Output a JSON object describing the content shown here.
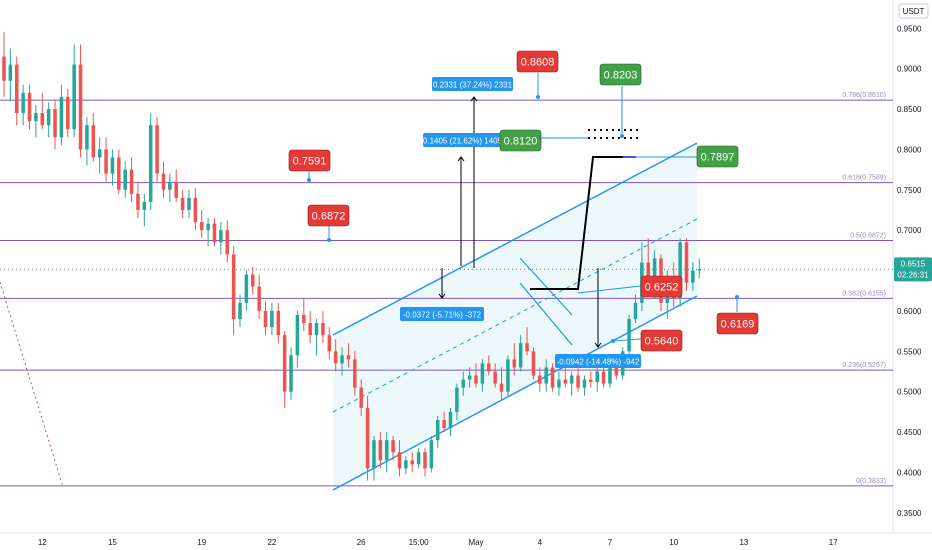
{
  "chart_data": {
    "type": "candlestick",
    "quote_currency": "USDT",
    "ylim": [
      0.325,
      0.985
    ],
    "x_index_range": [
      0,
      140
    ],
    "price_axis": {
      "ticks": [
        "0.9500",
        "0.9000",
        "0.8500",
        "0.8000",
        "0.7500",
        "0.7000",
        "0.6500",
        "0.6000",
        "0.5500",
        "0.5000",
        "0.4500",
        "0.4000",
        "0.3500"
      ],
      "current_price": "0.6515",
      "countdown": "02:26:31",
      "current_color": "#26a69a"
    },
    "time_axis": {
      "ticks": [
        {
          "label": "12",
          "i": 6
        },
        {
          "label": "15",
          "i": 17
        },
        {
          "label": "19",
          "i": 31
        },
        {
          "label": "22",
          "i": 42
        },
        {
          "label": "26",
          "i": 56
        },
        {
          "label": "15:00",
          "i": 65
        },
        {
          "label": "May",
          "i": 74
        },
        {
          "label": "4",
          "i": 84
        },
        {
          "label": "7",
          "i": 95
        },
        {
          "label": "10",
          "i": 105
        },
        {
          "label": "13",
          "i": 116
        },
        {
          "label": "17",
          "i": 130
        }
      ]
    },
    "fib_levels": [
      {
        "price": 0.861,
        "label": "0.786(0.8610)"
      },
      {
        "price": 0.7589,
        "label": "0.618(0.7589)"
      },
      {
        "price": 0.6872,
        "label": "0.5(0.6872)"
      },
      {
        "price": 0.6155,
        "label": "0.382(0.6155)"
      },
      {
        "price": 0.5267,
        "label": "0.236(0.5267)"
      },
      {
        "price": 0.3833,
        "label": "0(0.3833)"
      }
    ],
    "price_labels": [
      {
        "text": "0.8608",
        "price": 0.8608,
        "color": "#e53935"
      },
      {
        "text": "0.8203",
        "price": 0.8203,
        "color": "#43a047"
      },
      {
        "text": "0.8120",
        "price": 0.812,
        "color": "#43a047"
      },
      {
        "text": "0.7897",
        "price": 0.7897,
        "color": "#43a047"
      },
      {
        "text": "0.7591",
        "price": 0.7591,
        "color": "#e53935"
      },
      {
        "text": "0.6872",
        "price": 0.6872,
        "color": "#e53935"
      },
      {
        "text": "0.6252",
        "price": 0.6252,
        "color": "#e53935"
      },
      {
        "text": "0.6169",
        "price": 0.6169,
        "color": "#e53935"
      },
      {
        "text": "0.5640",
        "price": 0.564,
        "color": "#e53935"
      }
    ],
    "measurements": [
      {
        "text": "0.2331 (37.24%) 2331"
      },
      {
        "text": "0.1405 (21.62%) 1405"
      },
      {
        "text": "-0.0372 (-5.71%) -372"
      },
      {
        "text": "-0.0942 (-14.48%) -942"
      }
    ],
    "candles": [
      {
        "i": 0,
        "o": 0.915,
        "h": 0.945,
        "l": 0.865,
        "c": 0.885
      },
      {
        "i": 1,
        "o": 0.885,
        "h": 0.925,
        "l": 0.86,
        "c": 0.905
      },
      {
        "i": 2,
        "o": 0.905,
        "h": 0.915,
        "l": 0.83,
        "c": 0.845
      },
      {
        "i": 3,
        "o": 0.845,
        "h": 0.88,
        "l": 0.83,
        "c": 0.87
      },
      {
        "i": 4,
        "o": 0.87,
        "h": 0.88,
        "l": 0.825,
        "c": 0.835
      },
      {
        "i": 5,
        "o": 0.835,
        "h": 0.855,
        "l": 0.815,
        "c": 0.845
      },
      {
        "i": 6,
        "o": 0.845,
        "h": 0.87,
        "l": 0.825,
        "c": 0.83
      },
      {
        "i": 7,
        "o": 0.83,
        "h": 0.858,
        "l": 0.815,
        "c": 0.85
      },
      {
        "i": 8,
        "o": 0.85,
        "h": 0.862,
        "l": 0.8,
        "c": 0.815
      },
      {
        "i": 9,
        "o": 0.815,
        "h": 0.88,
        "l": 0.805,
        "c": 0.865
      },
      {
        "i": 10,
        "o": 0.865,
        "h": 0.875,
        "l": 0.815,
        "c": 0.825
      },
      {
        "i": 11,
        "o": 0.825,
        "h": 0.93,
        "l": 0.815,
        "c": 0.905
      },
      {
        "i": 12,
        "o": 0.905,
        "h": 0.93,
        "l": 0.79,
        "c": 0.8
      },
      {
        "i": 13,
        "o": 0.8,
        "h": 0.84,
        "l": 0.78,
        "c": 0.83
      },
      {
        "i": 14,
        "o": 0.83,
        "h": 0.845,
        "l": 0.785,
        "c": 0.79
      },
      {
        "i": 15,
        "o": 0.79,
        "h": 0.815,
        "l": 0.77,
        "c": 0.8
      },
      {
        "i": 16,
        "o": 0.8,
        "h": 0.815,
        "l": 0.76,
        "c": 0.77
      },
      {
        "i": 17,
        "o": 0.77,
        "h": 0.8,
        "l": 0.755,
        "c": 0.79
      },
      {
        "i": 18,
        "o": 0.79,
        "h": 0.8,
        "l": 0.745,
        "c": 0.75
      },
      {
        "i": 19,
        "o": 0.75,
        "h": 0.785,
        "l": 0.74,
        "c": 0.775
      },
      {
        "i": 20,
        "o": 0.775,
        "h": 0.79,
        "l": 0.735,
        "c": 0.745
      },
      {
        "i": 21,
        "o": 0.745,
        "h": 0.76,
        "l": 0.715,
        "c": 0.725
      },
      {
        "i": 22,
        "o": 0.725,
        "h": 0.745,
        "l": 0.705,
        "c": 0.735
      },
      {
        "i": 23,
        "o": 0.735,
        "h": 0.845,
        "l": 0.725,
        "c": 0.83
      },
      {
        "i": 24,
        "o": 0.83,
        "h": 0.84,
        "l": 0.76,
        "c": 0.77
      },
      {
        "i": 25,
        "o": 0.77,
        "h": 0.785,
        "l": 0.74,
        "c": 0.75
      },
      {
        "i": 26,
        "o": 0.75,
        "h": 0.77,
        "l": 0.735,
        "c": 0.76
      },
      {
        "i": 27,
        "o": 0.76,
        "h": 0.775,
        "l": 0.735,
        "c": 0.74
      },
      {
        "i": 28,
        "o": 0.74,
        "h": 0.75,
        "l": 0.715,
        "c": 0.725
      },
      {
        "i": 29,
        "o": 0.725,
        "h": 0.75,
        "l": 0.715,
        "c": 0.74
      },
      {
        "i": 30,
        "o": 0.74,
        "h": 0.752,
        "l": 0.7,
        "c": 0.71
      },
      {
        "i": 31,
        "o": 0.71,
        "h": 0.725,
        "l": 0.69,
        "c": 0.7
      },
      {
        "i": 32,
        "o": 0.7,
        "h": 0.715,
        "l": 0.68,
        "c": 0.708
      },
      {
        "i": 33,
        "o": 0.708,
        "h": 0.715,
        "l": 0.68,
        "c": 0.685
      },
      {
        "i": 34,
        "o": 0.685,
        "h": 0.71,
        "l": 0.67,
        "c": 0.7
      },
      {
        "i": 35,
        "o": 0.7,
        "h": 0.712,
        "l": 0.66,
        "c": 0.67
      },
      {
        "i": 36,
        "o": 0.67,
        "h": 0.68,
        "l": 0.57,
        "c": 0.59
      },
      {
        "i": 37,
        "o": 0.59,
        "h": 0.62,
        "l": 0.58,
        "c": 0.61
      },
      {
        "i": 38,
        "o": 0.61,
        "h": 0.65,
        "l": 0.6,
        "c": 0.645
      },
      {
        "i": 39,
        "o": 0.645,
        "h": 0.655,
        "l": 0.62,
        "c": 0.63
      },
      {
        "i": 40,
        "o": 0.63,
        "h": 0.645,
        "l": 0.59,
        "c": 0.6
      },
      {
        "i": 41,
        "o": 0.6,
        "h": 0.612,
        "l": 0.57,
        "c": 0.58
      },
      {
        "i": 42,
        "o": 0.58,
        "h": 0.61,
        "l": 0.57,
        "c": 0.6
      },
      {
        "i": 43,
        "o": 0.6,
        "h": 0.61,
        "l": 0.56,
        "c": 0.57
      },
      {
        "i": 44,
        "o": 0.57,
        "h": 0.575,
        "l": 0.48,
        "c": 0.5
      },
      {
        "i": 45,
        "o": 0.5,
        "h": 0.555,
        "l": 0.49,
        "c": 0.545
      },
      {
        "i": 46,
        "o": 0.545,
        "h": 0.6,
        "l": 0.53,
        "c": 0.595
      },
      {
        "i": 47,
        "o": 0.595,
        "h": 0.615,
        "l": 0.575,
        "c": 0.585
      },
      {
        "i": 48,
        "o": 0.585,
        "h": 0.6,
        "l": 0.56,
        "c": 0.57
      },
      {
        "i": 49,
        "o": 0.57,
        "h": 0.59,
        "l": 0.545,
        "c": 0.585
      },
      {
        "i": 50,
        "o": 0.585,
        "h": 0.6,
        "l": 0.56,
        "c": 0.57
      },
      {
        "i": 51,
        "o": 0.57,
        "h": 0.58,
        "l": 0.54,
        "c": 0.55
      },
      {
        "i": 52,
        "o": 0.55,
        "h": 0.565,
        "l": 0.525,
        "c": 0.535
      },
      {
        "i": 53,
        "o": 0.535,
        "h": 0.555,
        "l": 0.52,
        "c": 0.545
      },
      {
        "i": 54,
        "o": 0.545,
        "h": 0.56,
        "l": 0.53,
        "c": 0.54
      },
      {
        "i": 55,
        "o": 0.54,
        "h": 0.55,
        "l": 0.495,
        "c": 0.505
      },
      {
        "i": 56,
        "o": 0.505,
        "h": 0.515,
        "l": 0.47,
        "c": 0.48
      },
      {
        "i": 57,
        "o": 0.48,
        "h": 0.495,
        "l": 0.39,
        "c": 0.405
      },
      {
        "i": 58,
        "o": 0.405,
        "h": 0.445,
        "l": 0.39,
        "c": 0.44
      },
      {
        "i": 59,
        "o": 0.44,
        "h": 0.45,
        "l": 0.405,
        "c": 0.415
      },
      {
        "i": 60,
        "o": 0.415,
        "h": 0.45,
        "l": 0.4,
        "c": 0.44
      },
      {
        "i": 61,
        "o": 0.44,
        "h": 0.445,
        "l": 0.415,
        "c": 0.425
      },
      {
        "i": 62,
        "o": 0.425,
        "h": 0.44,
        "l": 0.395,
        "c": 0.405
      },
      {
        "i": 63,
        "o": 0.405,
        "h": 0.42,
        "l": 0.398,
        "c": 0.415
      },
      {
        "i": 64,
        "o": 0.415,
        "h": 0.425,
        "l": 0.4,
        "c": 0.41
      },
      {
        "i": 65,
        "o": 0.41,
        "h": 0.43,
        "l": 0.405,
        "c": 0.425
      },
      {
        "i": 66,
        "o": 0.425,
        "h": 0.43,
        "l": 0.395,
        "c": 0.405
      },
      {
        "i": 67,
        "o": 0.405,
        "h": 0.445,
        "l": 0.4,
        "c": 0.44
      },
      {
        "i": 68,
        "o": 0.44,
        "h": 0.47,
        "l": 0.43,
        "c": 0.465
      },
      {
        "i": 69,
        "o": 0.465,
        "h": 0.475,
        "l": 0.45,
        "c": 0.455
      },
      {
        "i": 70,
        "o": 0.455,
        "h": 0.48,
        "l": 0.445,
        "c": 0.475
      },
      {
        "i": 71,
        "o": 0.475,
        "h": 0.51,
        "l": 0.465,
        "c": 0.505
      },
      {
        "i": 72,
        "o": 0.505,
        "h": 0.525,
        "l": 0.495,
        "c": 0.515
      },
      {
        "i": 73,
        "o": 0.515,
        "h": 0.53,
        "l": 0.505,
        "c": 0.52
      },
      {
        "i": 74,
        "o": 0.52,
        "h": 0.535,
        "l": 0.505,
        "c": 0.51
      },
      {
        "i": 75,
        "o": 0.51,
        "h": 0.54,
        "l": 0.5,
        "c": 0.535
      },
      {
        "i": 76,
        "o": 0.535,
        "h": 0.545,
        "l": 0.52,
        "c": 0.525
      },
      {
        "i": 77,
        "o": 0.525,
        "h": 0.535,
        "l": 0.505,
        "c": 0.51
      },
      {
        "i": 78,
        "o": 0.51,
        "h": 0.53,
        "l": 0.49,
        "c": 0.5
      },
      {
        "i": 79,
        "o": 0.5,
        "h": 0.545,
        "l": 0.495,
        "c": 0.54
      },
      {
        "i": 80,
        "o": 0.54,
        "h": 0.56,
        "l": 0.52,
        "c": 0.53
      },
      {
        "i": 81,
        "o": 0.53,
        "h": 0.57,
        "l": 0.525,
        "c": 0.56
      },
      {
        "i": 82,
        "o": 0.56,
        "h": 0.58,
        "l": 0.545,
        "c": 0.55
      },
      {
        "i": 83,
        "o": 0.55,
        "h": 0.555,
        "l": 0.515,
        "c": 0.52
      },
      {
        "i": 84,
        "o": 0.52,
        "h": 0.53,
        "l": 0.5,
        "c": 0.51
      },
      {
        "i": 85,
        "o": 0.51,
        "h": 0.54,
        "l": 0.5,
        "c": 0.53
      },
      {
        "i": 86,
        "o": 0.53,
        "h": 0.535,
        "l": 0.5,
        "c": 0.505
      },
      {
        "i": 87,
        "o": 0.505,
        "h": 0.525,
        "l": 0.495,
        "c": 0.515
      },
      {
        "i": 88,
        "o": 0.515,
        "h": 0.53,
        "l": 0.505,
        "c": 0.51
      },
      {
        "i": 89,
        "o": 0.51,
        "h": 0.525,
        "l": 0.495,
        "c": 0.52
      },
      {
        "i": 90,
        "o": 0.52,
        "h": 0.53,
        "l": 0.5,
        "c": 0.505
      },
      {
        "i": 91,
        "o": 0.505,
        "h": 0.52,
        "l": 0.495,
        "c": 0.515
      },
      {
        "i": 92,
        "o": 0.515,
        "h": 0.525,
        "l": 0.505,
        "c": 0.512
      },
      {
        "i": 93,
        "o": 0.512,
        "h": 0.53,
        "l": 0.5,
        "c": 0.525
      },
      {
        "i": 94,
        "o": 0.525,
        "h": 0.53,
        "l": 0.505,
        "c": 0.51
      },
      {
        "i": 95,
        "o": 0.51,
        "h": 0.54,
        "l": 0.505,
        "c": 0.535
      },
      {
        "i": 96,
        "o": 0.535,
        "h": 0.545,
        "l": 0.515,
        "c": 0.52
      },
      {
        "i": 97,
        "o": 0.52,
        "h": 0.555,
        "l": 0.515,
        "c": 0.55
      },
      {
        "i": 98,
        "o": 0.55,
        "h": 0.595,
        "l": 0.545,
        "c": 0.59
      },
      {
        "i": 99,
        "o": 0.59,
        "h": 0.62,
        "l": 0.585,
        "c": 0.61
      },
      {
        "i": 100,
        "o": 0.61,
        "h": 0.685,
        "l": 0.6,
        "c": 0.66
      },
      {
        "i": 101,
        "o": 0.66,
        "h": 0.69,
        "l": 0.625,
        "c": 0.64
      },
      {
        "i": 102,
        "o": 0.64,
        "h": 0.675,
        "l": 0.615,
        "c": 0.665
      },
      {
        "i": 103,
        "o": 0.665,
        "h": 0.67,
        "l": 0.6,
        "c": 0.61
      },
      {
        "i": 104,
        "o": 0.61,
        "h": 0.65,
        "l": 0.59,
        "c": 0.64
      },
      {
        "i": 105,
        "o": 0.64,
        "h": 0.66,
        "l": 0.605,
        "c": 0.615
      },
      {
        "i": 106,
        "o": 0.615,
        "h": 0.69,
        "l": 0.605,
        "c": 0.685
      },
      {
        "i": 107,
        "o": 0.685,
        "h": 0.69,
        "l": 0.625,
        "c": 0.635
      },
      {
        "i": 108,
        "o": 0.635,
        "h": 0.66,
        "l": 0.625,
        "c": 0.65
      },
      {
        "i": 109,
        "o": 0.65,
        "h": 0.665,
        "l": 0.64,
        "c": 0.6515
      }
    ]
  }
}
